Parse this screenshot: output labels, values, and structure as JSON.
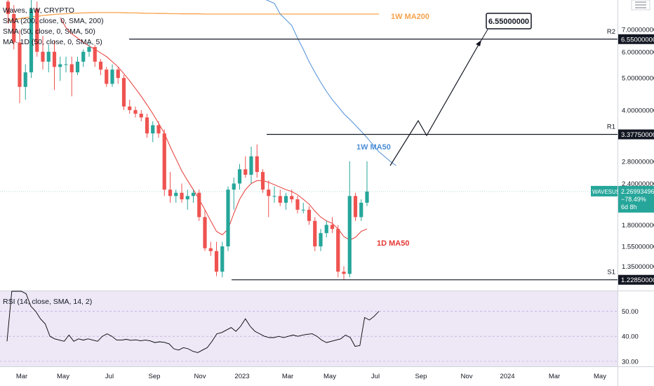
{
  "legend": {
    "title": "Waves, 1W, CRYPTO",
    "ind1": "SMA (200, close, 0, SMA, 200)",
    "ind2": "SMA (50, close, 0, SMA, 50)",
    "ind3": "MA · 1D (50, close, 0, SMA, 5)"
  },
  "rsi_label": "RSI (14, close, SMA, 14, 2)",
  "price_badge": {
    "symbol": "WAVESUSD",
    "price": "2.26993496",
    "change": "−78.49%",
    "countdown": "6d 8h"
  },
  "colors": {
    "up": "#26a69a",
    "down": "#ef5350",
    "ma200": "#f7a24b",
    "ma50w": "#4e8fd6",
    "ma50d": "#e53935",
    "rsi": "#000000",
    "rsi_bg": "#ede7f6"
  },
  "chart_data": [
    {
      "type": "candlestick",
      "title": "Waves, 1W, CRYPTO",
      "y_scale": "log",
      "ylim": [
        1.14,
        8.6
      ],
      "y_ticks": [
        "7.00000000",
        "6.00000000",
        "5.00000000",
        "4.00000000",
        "2.80000000",
        "2.40000000",
        "1.80000000",
        "1.55000000",
        "1.35000000"
      ],
      "x_ticks": [
        "Mar",
        "May",
        "Jul",
        "Sep",
        "Nov",
        "2023",
        "Mar",
        "May",
        "Jul",
        "Sep",
        "Nov",
        "2024",
        "Mar",
        "May"
      ],
      "levels": [
        {
          "label": "R2",
          "value": "6.55000000",
          "y": 6.55
        },
        {
          "label": "R1",
          "value": "3.37750000",
          "y": 3.3775
        },
        {
          "label": "S1",
          "value": "1.22850000",
          "y": 1.2285
        }
      ],
      "annotations": {
        "ma200": "1W MA200",
        "ma50w": "1W MA50",
        "ma50d": "1D MA50",
        "target": "6.55000000"
      },
      "candles": [
        [
          8.5,
          9.2,
          7.3,
          7.8
        ],
        [
          7.8,
          8.3,
          6.1,
          6.4
        ],
        [
          6.4,
          7.0,
          4.2,
          4.7
        ],
        [
          4.7,
          5.5,
          4.3,
          5.2
        ],
        [
          5.2,
          9.4,
          5.0,
          8.1
        ],
        [
          8.1,
          8.5,
          5.8,
          6.0
        ],
        [
          6.0,
          6.7,
          5.3,
          5.6
        ],
        [
          5.6,
          6.3,
          5.2,
          6.0
        ],
        [
          6.0,
          6.5,
          4.6,
          5.4
        ],
        [
          5.4,
          5.8,
          4.9,
          5.5
        ],
        [
          5.5,
          5.8,
          5.2,
          5.5
        ],
        [
          5.5,
          5.8,
          4.4,
          5.2
        ],
        [
          5.2,
          5.8,
          5.1,
          5.6
        ],
        [
          5.6,
          6.1,
          5.4,
          6.0
        ],
        [
          6.0,
          6.4,
          5.8,
          6.2
        ],
        [
          6.2,
          6.3,
          5.4,
          5.6
        ],
        [
          5.6,
          5.7,
          5.1,
          5.3
        ],
        [
          5.3,
          5.4,
          4.7,
          4.8
        ],
        [
          4.8,
          5.5,
          4.7,
          5.3
        ],
        [
          5.3,
          5.4,
          4.8,
          5.0
        ],
        [
          5.0,
          5.1,
          4.0,
          4.1
        ],
        [
          4.1,
          4.3,
          3.9,
          4.0
        ],
        [
          4.0,
          4.1,
          3.8,
          3.9
        ],
        [
          3.9,
          4.0,
          3.7,
          3.8
        ],
        [
          3.8,
          3.9,
          3.3,
          3.4
        ],
        [
          3.4,
          3.7,
          3.2,
          3.6
        ],
        [
          3.6,
          3.7,
          3.3,
          3.4
        ],
        [
          3.4,
          3.5,
          2.2,
          2.3
        ],
        [
          2.3,
          2.6,
          2.1,
          2.2
        ],
        [
          2.2,
          2.3,
          2.1,
          2.25
        ],
        [
          2.25,
          2.4,
          2.1,
          2.15
        ],
        [
          2.15,
          2.3,
          2.0,
          2.2
        ],
        [
          2.2,
          2.3,
          2.1,
          2.25
        ],
        [
          2.25,
          2.3,
          1.85,
          1.9
        ],
        [
          1.9,
          2.0,
          1.5,
          1.53
        ],
        [
          1.53,
          1.6,
          1.45,
          1.5
        ],
        [
          1.5,
          1.6,
          1.26,
          1.3
        ],
        [
          1.3,
          1.6,
          1.25,
          1.55
        ],
        [
          1.55,
          2.35,
          1.5,
          2.3
        ],
        [
          2.3,
          2.5,
          2.0,
          2.4
        ],
        [
          2.4,
          2.75,
          2.3,
          2.65
        ],
        [
          2.65,
          2.9,
          2.5,
          2.55
        ],
        [
          2.55,
          3.1,
          2.4,
          2.9
        ],
        [
          2.9,
          3.15,
          2.5,
          2.6
        ],
        [
          2.6,
          2.65,
          2.25,
          2.3
        ],
        [
          2.3,
          2.45,
          1.9,
          2.2
        ],
        [
          2.2,
          2.35,
          2.1,
          2.2
        ],
        [
          2.2,
          2.3,
          2.05,
          2.1
        ],
        [
          2.1,
          2.25,
          2.0,
          2.2
        ],
        [
          2.2,
          2.3,
          2.1,
          2.15
        ],
        [
          2.15,
          2.2,
          1.95,
          2.0
        ],
        [
          2.0,
          2.1,
          1.95,
          2.0
        ],
        [
          2.0,
          2.05,
          1.8,
          1.85
        ],
        [
          1.85,
          1.9,
          1.5,
          1.55
        ],
        [
          1.55,
          1.75,
          1.5,
          1.7
        ],
        [
          1.7,
          1.85,
          1.65,
          1.8
        ],
        [
          1.8,
          1.9,
          1.7,
          1.75
        ],
        [
          1.75,
          1.8,
          1.25,
          1.3
        ],
        [
          1.3,
          1.35,
          1.23,
          1.28
        ],
        [
          1.28,
          2.8,
          1.25,
          2.2
        ],
        [
          2.2,
          2.25,
          1.85,
          1.9
        ],
        [
          1.9,
          2.15,
          1.85,
          2.1
        ],
        [
          2.1,
          2.8,
          2.05,
          2.27
        ]
      ],
      "ma200": [
        7.45,
        7.5,
        7.55,
        7.6,
        7.65,
        7.68,
        7.72,
        7.75,
        7.78,
        7.8,
        7.82,
        7.84,
        7.85,
        7.86,
        7.87,
        7.88,
        7.88,
        7.88,
        7.88,
        7.88,
        7.87,
        7.86,
        7.86,
        7.85,
        7.84,
        7.84,
        7.83,
        7.83,
        7.82,
        7.82,
        7.81,
        7.81,
        7.81,
        7.81,
        7.8,
        7.8,
        7.8,
        7.8,
        7.8,
        7.8,
        7.8,
        7.8,
        7.8,
        7.8,
        7.8,
        7.8,
        7.8,
        7.8,
        7.8,
        7.8,
        7.8,
        7.8,
        7.8,
        7.8,
        7.8,
        7.8,
        7.8,
        7.8,
        7.8,
        7.8,
        7.8,
        7.8,
        7.8
      ],
      "ma50w": [
        [
          42,
          9.0
        ],
        [
          46,
          8.4
        ],
        [
          47,
          7.8
        ],
        [
          49,
          7.2
        ],
        [
          50,
          6.6
        ],
        [
          51,
          6.1
        ],
        [
          52,
          5.6
        ],
        [
          53,
          5.2
        ],
        [
          54,
          4.85
        ],
        [
          55,
          4.55
        ],
        [
          56,
          4.3
        ],
        [
          57,
          4.1
        ],
        [
          58,
          3.9
        ],
        [
          59,
          3.75
        ],
        [
          60,
          3.6
        ],
        [
          61,
          3.45
        ],
        [
          62,
          3.3
        ],
        [
          63,
          3.15
        ],
        [
          64,
          3.0
        ],
        [
          65,
          2.9
        ],
        [
          66,
          2.8
        ],
        [
          67,
          2.72
        ]
      ],
      "ma50d": [
        null,
        null,
        null,
        null,
        null,
        null,
        null,
        null,
        null,
        7.6,
        7.1,
        6.8,
        6.6,
        6.4,
        6.25,
        6.1,
        5.95,
        5.8,
        5.6,
        5.4,
        5.15,
        4.9,
        4.65,
        4.4,
        4.15,
        3.9,
        3.65,
        3.4,
        3.1,
        2.85,
        2.62,
        2.45,
        2.3,
        2.15,
        2.0,
        1.85,
        1.72,
        1.68,
        1.75,
        1.95,
        2.15,
        2.3,
        2.4,
        2.45,
        2.45,
        2.42,
        2.38,
        2.34,
        2.3,
        2.27,
        2.22,
        2.15,
        2.08,
        1.98,
        1.9,
        1.85,
        1.82,
        1.75,
        1.66,
        1.62,
        1.65,
        1.72,
        1.75
      ],
      "rsi": {
        "ylim": [
          28,
          58
        ],
        "y_ticks": [
          "50.00",
          "40.00",
          "30.00"
        ],
        "values": [
          38,
          60,
          65,
          60,
          57,
          52,
          50,
          47,
          45,
          40,
          39,
          38.5,
          38,
          40.5,
          38,
          39,
          38.5,
          39,
          38.5,
          38,
          40,
          41,
          40,
          38.5,
          38.5,
          38.8,
          38.4,
          38.6,
          38.2,
          38.5,
          38.2,
          37.5,
          37.8,
          37.6,
          37,
          35,
          34.5,
          35.5,
          35,
          34,
          33.5,
          34.5,
          35.5,
          38,
          41,
          41.5,
          42.5,
          43.5,
          42,
          44,
          47,
          44,
          42,
          41,
          40,
          39.5,
          39.5,
          40,
          39.5,
          40,
          40.5,
          40,
          40.5,
          40.8,
          41,
          40,
          38.5,
          37.5,
          38,
          38.5,
          39,
          40.5,
          39.5,
          36,
          36.3,
          47.5,
          46.5,
          48,
          50
        ]
      }
    }
  ]
}
